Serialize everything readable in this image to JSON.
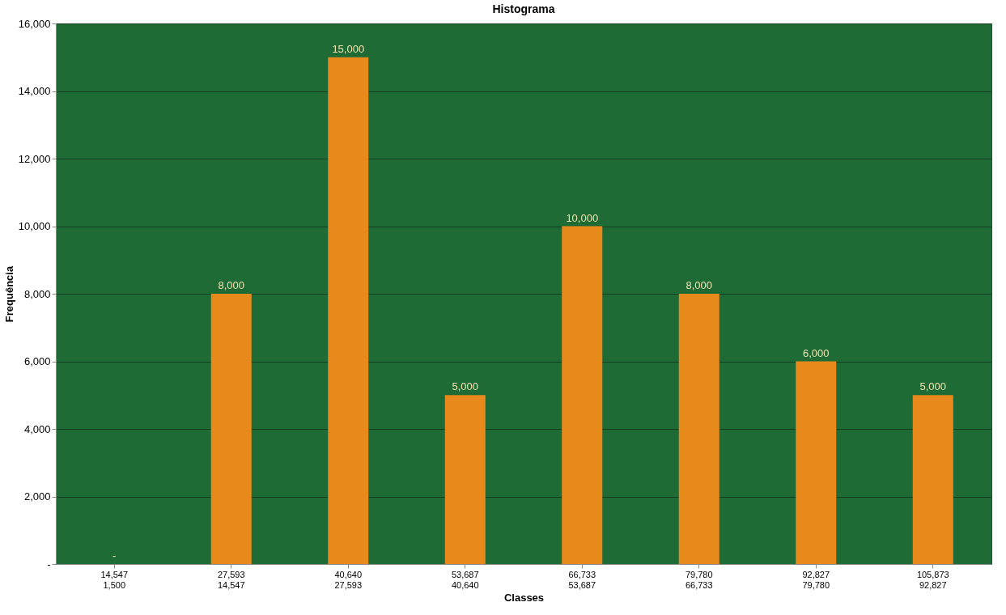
{
  "chart_data": {
    "type": "bar",
    "title": "Histograma",
    "xlabel": "Classes",
    "ylabel": "Frequência",
    "categories": [
      "14,547\n1,500",
      "27,593\n14,547",
      "40,640\n27,593",
      "53,687\n40,640",
      "66,733\n53,687",
      "79,780\n66,733",
      "92,827\n79,780",
      "105,873\n92,827"
    ],
    "values": [
      0,
      8000,
      15000,
      5000,
      10000,
      8000,
      6000,
      5000
    ],
    "value_labels": [
      "-",
      "8,000",
      "15,000",
      "5,000",
      "10,000",
      "8,000",
      "6,000",
      "5,000"
    ],
    "color": "#e8891c",
    "ylim": [
      0,
      16000
    ],
    "yticks": [
      {
        "value": 0,
        "label": "-"
      },
      {
        "value": 2000,
        "label": "2,000"
      },
      {
        "value": 4000,
        "label": "4,000"
      },
      {
        "value": 6000,
        "label": "6,000"
      },
      {
        "value": 8000,
        "label": "8,000"
      },
      {
        "value": 10000,
        "label": "10,000"
      },
      {
        "value": 12000,
        "label": "12,000"
      },
      {
        "value": 14000,
        "label": "14,000"
      },
      {
        "value": 16000,
        "label": "16,000"
      }
    ],
    "grid": "y"
  }
}
